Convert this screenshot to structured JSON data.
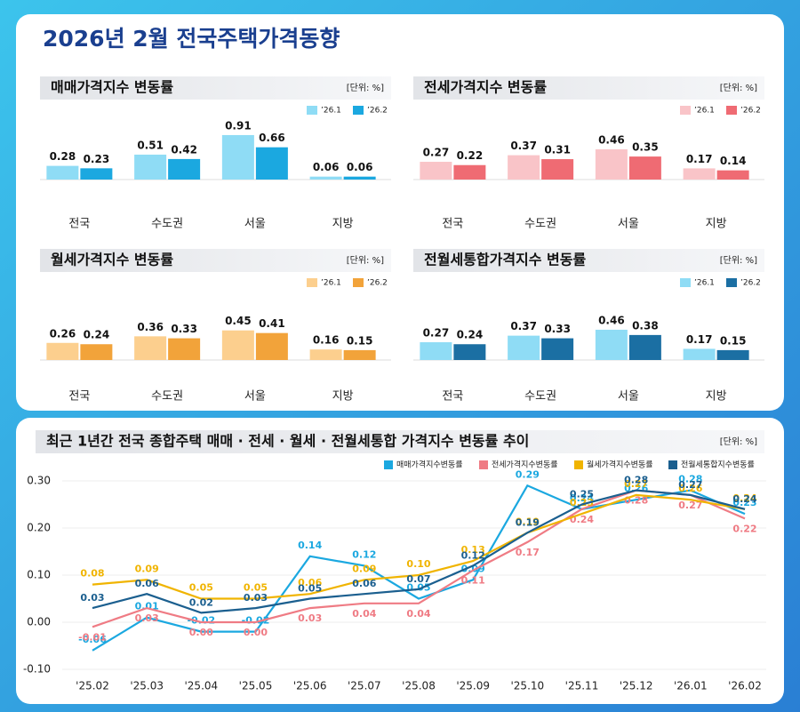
{
  "title": "2026년 2월 전국주택가격동향",
  "chart_data": [
    {
      "type": "bar",
      "title": "매매가격지수 변동률",
      "unit": "[단위: %]",
      "categories": [
        "전국",
        "수도권",
        "서울",
        "지방"
      ],
      "series": [
        {
          "name": "’26.1",
          "color": "#8fdcf5",
          "values": [
            0.28,
            0.51,
            0.91,
            0.06
          ]
        },
        {
          "name": "’26.2",
          "color": "#1ba8e0",
          "values": [
            0.23,
            0.42,
            0.66,
            0.06
          ]
        }
      ]
    },
    {
      "type": "bar",
      "title": "전세가격지수 변동률",
      "unit": "[단위: %]",
      "categories": [
        "전국",
        "수도권",
        "서울",
        "지방"
      ],
      "series": [
        {
          "name": "’26.1",
          "color": "#f9c4c8",
          "values": [
            0.27,
            0.37,
            0.46,
            0.17
          ]
        },
        {
          "name": "’26.2",
          "color": "#ef6b73",
          "values": [
            0.22,
            0.31,
            0.35,
            0.14
          ]
        }
      ]
    },
    {
      "type": "bar",
      "title": "월세가격지수 변동률",
      "unit": "[단위: %]",
      "categories": [
        "전국",
        "수도권",
        "서울",
        "지방"
      ],
      "series": [
        {
          "name": "’26.1",
          "color": "#fccf8e",
          "values": [
            0.26,
            0.36,
            0.45,
            0.16
          ]
        },
        {
          "name": "’26.2",
          "color": "#f2a33a",
          "values": [
            0.24,
            0.33,
            0.41,
            0.15
          ]
        }
      ]
    },
    {
      "type": "bar",
      "title": "전월세통합가격지수 변동률",
      "unit": "[단위: %]",
      "categories": [
        "전국",
        "수도권",
        "서울",
        "지방"
      ],
      "series": [
        {
          "name": "’26.1",
          "color": "#8fdcf5",
          "values": [
            0.27,
            0.37,
            0.46,
            0.17
          ]
        },
        {
          "name": "’26.2",
          "color": "#1b6fa3",
          "values": [
            0.24,
            0.33,
            0.38,
            0.15
          ]
        }
      ]
    },
    {
      "type": "line",
      "title": "최근 1년간 전국 종합주택 매매 · 전세 · 월세 · 전월세통합 가격지수 변동률 추이",
      "unit": "[단위: %]",
      "categories": [
        "'25.02",
        "'25.03",
        "'25.04",
        "'25.05",
        "'25.06",
        "'25.07",
        "'25.08",
        "'25.09",
        "'25.10",
        "'25.11",
        "'25.12",
        "'26.01",
        "'26.02"
      ],
      "series": [
        {
          "name": "매매가격지수변동률",
          "color": "#1ba8e0",
          "values": [
            -0.06,
            0.01,
            -0.02,
            -0.02,
            0.14,
            0.12,
            0.05,
            0.09,
            0.29,
            0.24,
            0.26,
            0.28,
            0.23
          ],
          "value_labels": [
            "-0.06",
            "0.01",
            "-0.02",
            "-0.02",
            "0.14",
            "0.12",
            "0.05",
            "0.09",
            "0.29",
            "0.24",
            "0.26",
            "0.28",
            "0.23"
          ]
        },
        {
          "name": "전세가격지수변동률",
          "color": "#ef7b84",
          "values": [
            -0.01,
            0.03,
            0.0,
            0.0,
            0.03,
            0.04,
            0.04,
            0.11,
            0.17,
            0.24,
            0.28,
            0.27,
            0.22
          ],
          "value_labels": [
            "-0.01",
            "0.03",
            "0.00",
            "0.00",
            "0.03",
            "0.04",
            "0.04",
            "0.11",
            "0.17",
            "0.24",
            "0.28",
            "0.27",
            "0.22"
          ]
        },
        {
          "name": "월세가격지수변동률",
          "color": "#f0b400",
          "values": [
            0.08,
            0.09,
            0.05,
            0.05,
            0.06,
            0.09,
            0.1,
            0.13,
            0.19,
            0.23,
            0.27,
            0.26,
            0.24
          ],
          "value_labels": [
            "0.08",
            "0.09",
            "0.05",
            "0.05",
            "0.06",
            "0.09",
            "0.10",
            "0.13",
            "0.19",
            "0.23",
            "0.27",
            "0.26",
            "0.24"
          ]
        },
        {
          "name": "전월세통합지수변동률",
          "color": "#1b5f8f",
          "values": [
            0.03,
            0.06,
            0.02,
            0.03,
            0.05,
            0.06,
            0.07,
            0.12,
            0.19,
            0.25,
            0.28,
            0.27,
            0.24
          ],
          "value_labels": [
            "0.03",
            "0.06",
            "0.02",
            "0.03",
            "0.05",
            "0.06",
            "0.07",
            "0.12",
            "0.19",
            "0.25",
            "0.28",
            "0.27",
            "0.24"
          ]
        }
      ],
      "ylim": [
        -0.1,
        0.3
      ],
      "yticks": [
        {
          "value": -0.1,
          "label": "-0.10"
        },
        {
          "value": 0,
          "label": "0.00"
        },
        {
          "value": 0.1,
          "label": "0.10"
        },
        {
          "value": 0.2,
          "label": "0.20"
        },
        {
          "value": 0.3,
          "label": "0.30"
        }
      ],
      "grid": true
    }
  ]
}
